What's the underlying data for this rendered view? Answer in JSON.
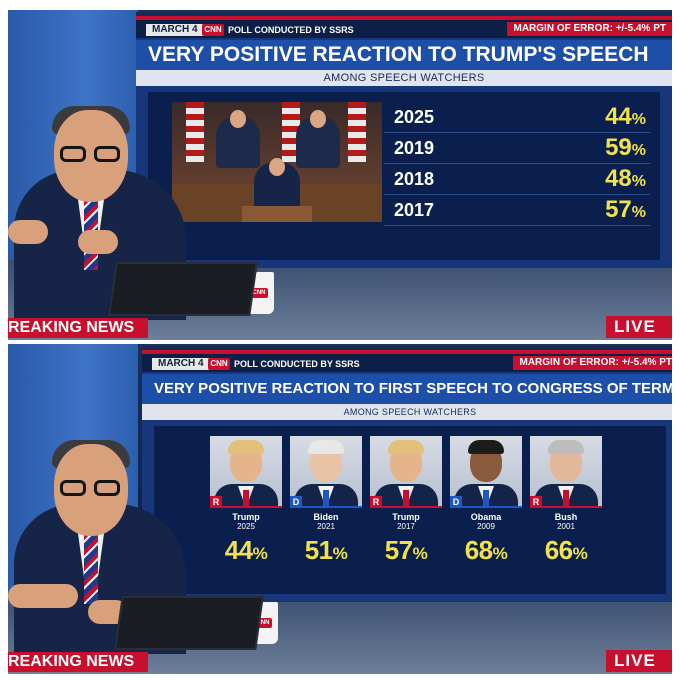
{
  "top_panel": {
    "date": "MARCH 4",
    "logo": "CNN",
    "poll_label": "POLL CONDUCTED BY SSRS",
    "margin_of_error": "MARGIN OF ERROR: +/-5.4% PT",
    "headline": "VERY POSITIVE REACTION TO TRUMP'S SPEECH",
    "subhead": "AMONG SPEECH WATCHERS",
    "rows": [
      {
        "year": "2025",
        "value": "44",
        "unit": "%"
      },
      {
        "year": "2019",
        "value": "59",
        "unit": "%"
      },
      {
        "year": "2018",
        "value": "48",
        "unit": "%"
      },
      {
        "year": "2017",
        "value": "57",
        "unit": "%"
      }
    ],
    "breaking": "REAKING NEWS",
    "live": "LIVE",
    "cup_logo": "CNN"
  },
  "bottom_panel": {
    "date": "MARCH 4",
    "logo": "CNN",
    "poll_label": "POLL CONDUCTED BY SSRS",
    "margin_of_error": "MARGIN OF ERROR: +/-5.4% PT",
    "headline": "VERY POSITIVE REACTION TO FIRST SPEECH TO CONGRESS OF TERM",
    "subhead": "AMONG SPEECH WATCHERS",
    "cards": [
      {
        "name": "Trump",
        "year": "2025",
        "party": "R",
        "value": "44",
        "unit": "%"
      },
      {
        "name": "Biden",
        "year": "2021",
        "party": "D",
        "value": "51",
        "unit": "%"
      },
      {
        "name": "Trump",
        "year": "2017",
        "party": "R",
        "value": "57",
        "unit": "%"
      },
      {
        "name": "Obama",
        "year": "2009",
        "party": "D",
        "value": "68",
        "unit": "%"
      },
      {
        "name": "Bush",
        "year": "2001",
        "party": "R",
        "value": "66",
        "unit": "%"
      }
    ],
    "breaking": "REAKING NEWS",
    "live": "LIVE",
    "cup_logo": "CNN"
  },
  "colors": {
    "cnn_red": "#c8102e",
    "headline_blue": "#1e4fa8",
    "panel_navy": "#0b1f4e",
    "value_yellow": "#f2e14a",
    "republican": "#c8102e",
    "democrat": "#1f56c8"
  }
}
